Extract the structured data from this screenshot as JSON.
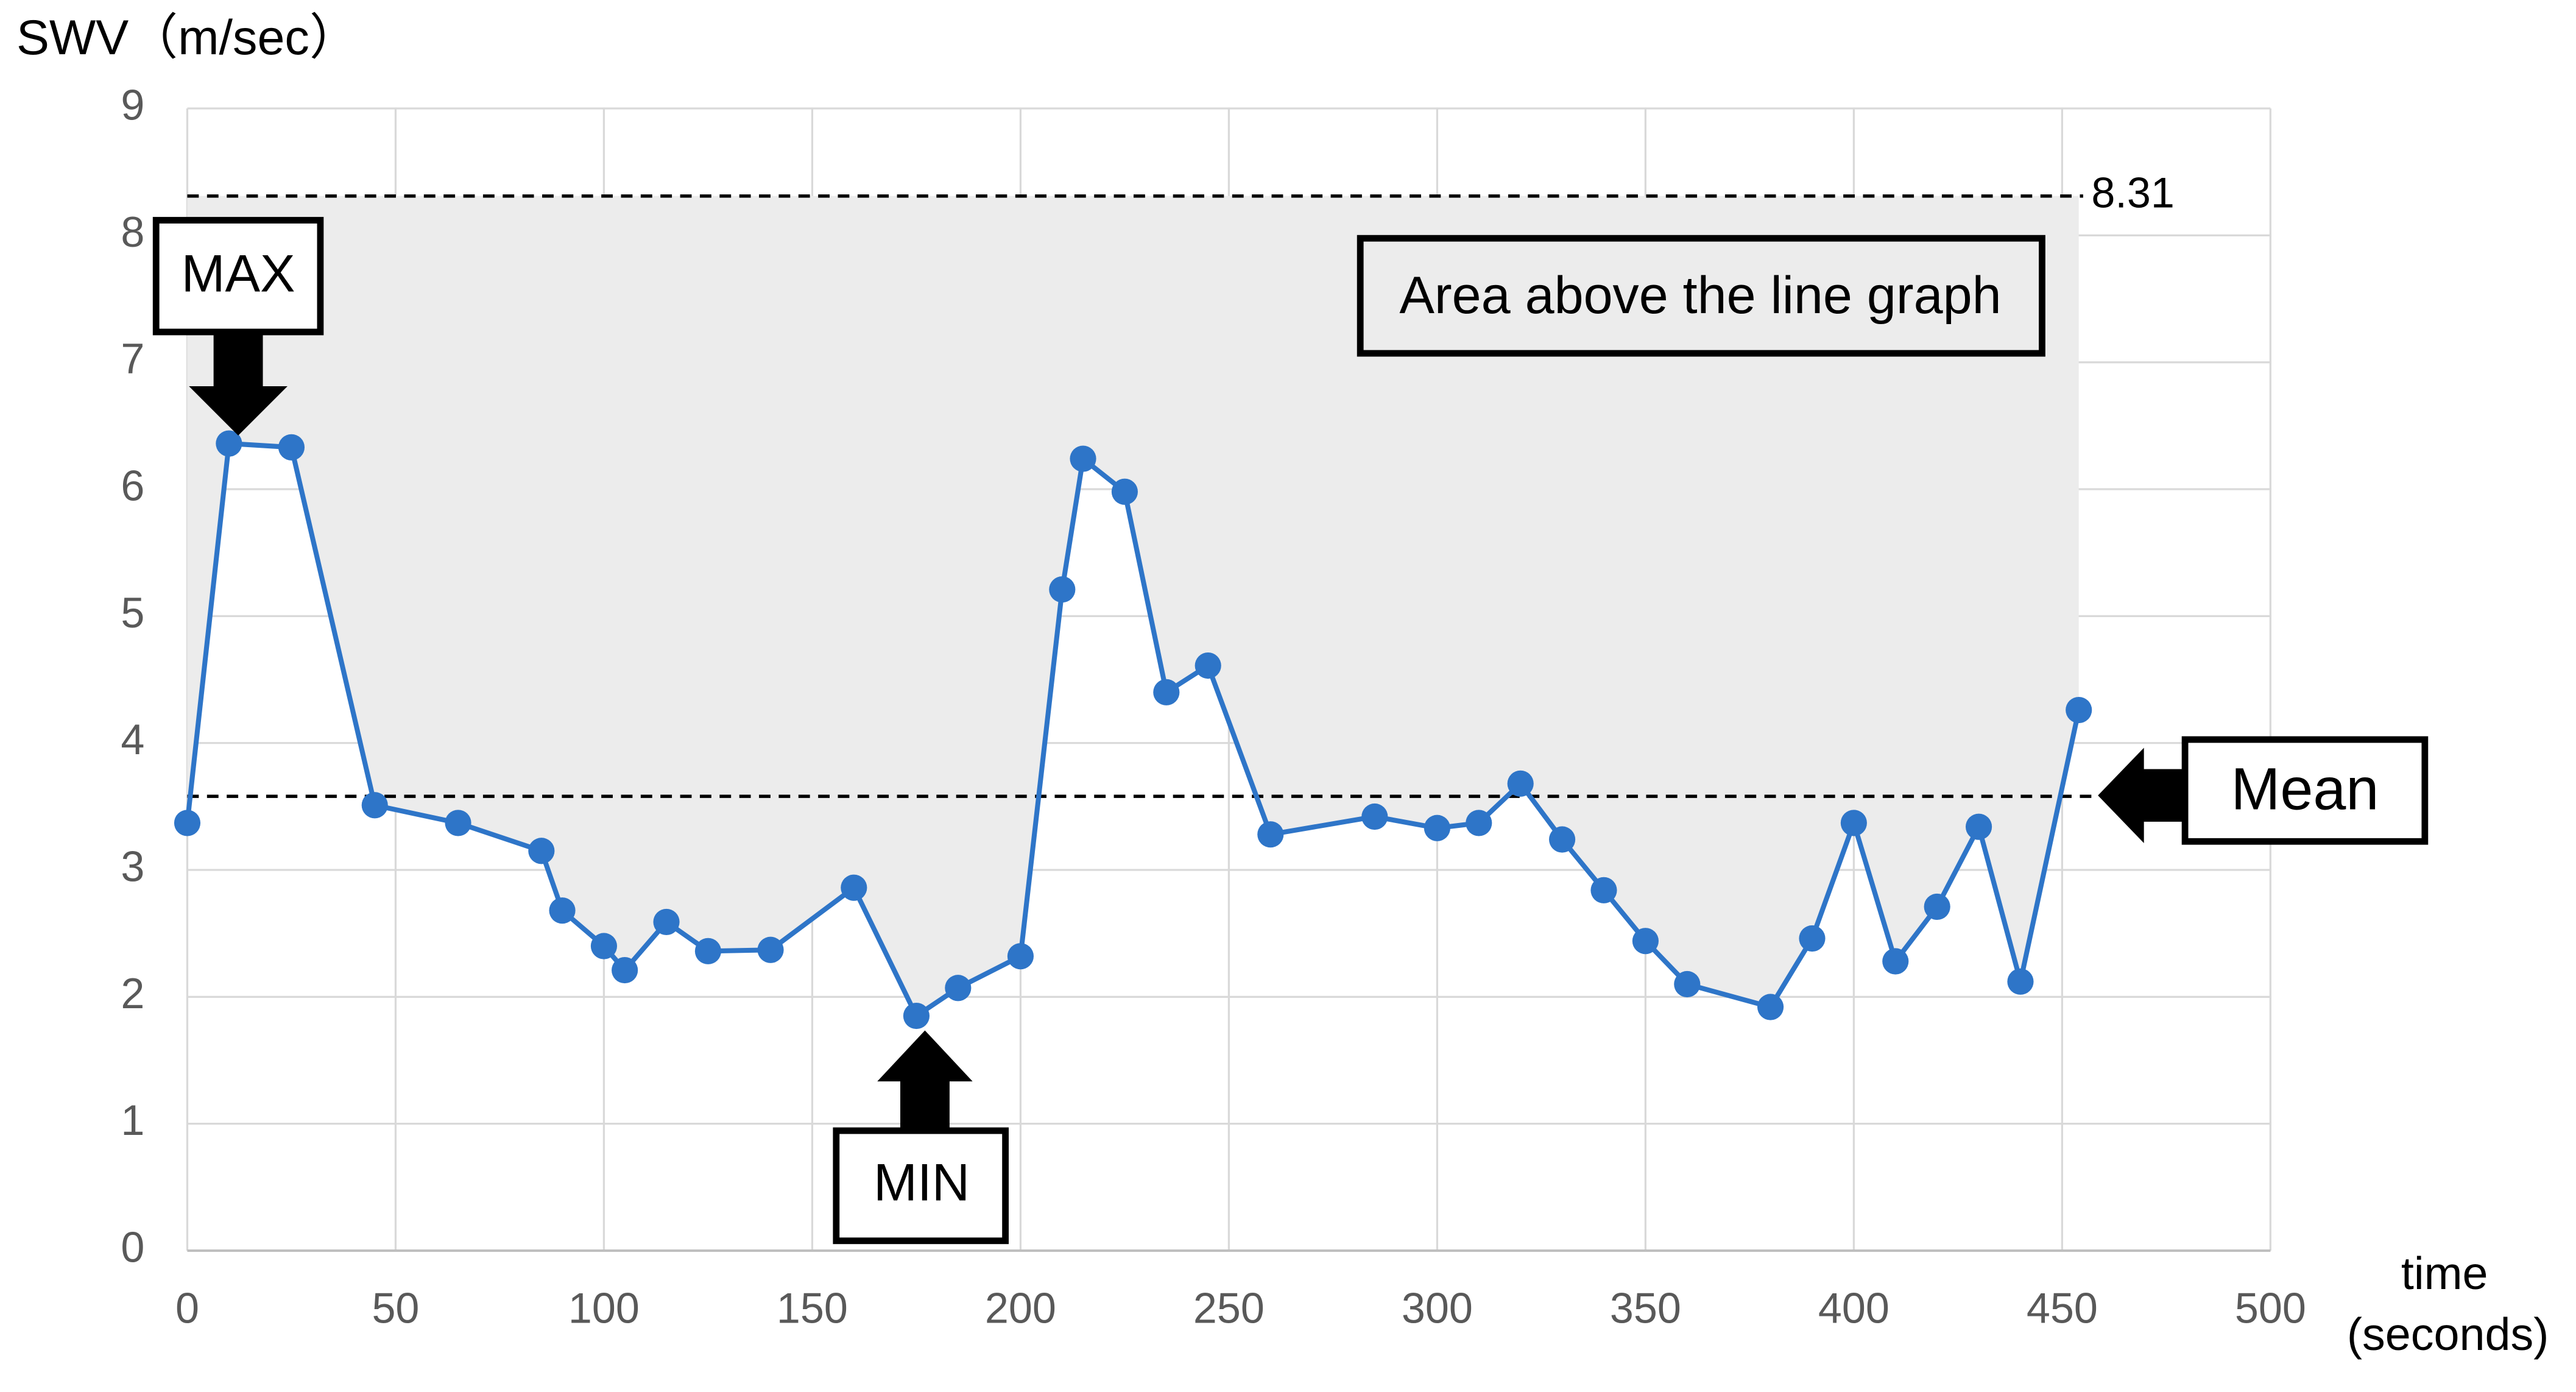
{
  "chart_data": {
    "type": "line",
    "y_label": "SWV（m/sec）",
    "x_label_lines": [
      "time",
      "(seconds)"
    ],
    "x": [
      0,
      10,
      25,
      45,
      65,
      85,
      90,
      100,
      105,
      115,
      125,
      140,
      160,
      175,
      185,
      200,
      210,
      215,
      225,
      235,
      245,
      260,
      285,
      300,
      310,
      320,
      330,
      340,
      350,
      360,
      380,
      390,
      400,
      410,
      420,
      430,
      440,
      454
    ],
    "values": [
      3.37,
      6.36,
      6.33,
      3.51,
      3.37,
      3.15,
      2.68,
      2.4,
      2.21,
      2.59,
      2.36,
      2.37,
      2.86,
      1.85,
      2.07,
      2.32,
      5.21,
      6.24,
      5.98,
      4.4,
      4.61,
      3.28,
      3.42,
      3.33,
      3.37,
      3.68,
      3.24,
      2.84,
      2.44,
      2.1,
      1.92,
      2.46,
      3.37,
      2.28,
      2.71,
      3.34,
      2.12,
      4.26
    ],
    "color": "#2e75c8",
    "xlim": [
      0,
      500
    ],
    "xticks": [
      0,
      50,
      100,
      150,
      200,
      250,
      300,
      350,
      400,
      450,
      500
    ],
    "ylim": [
      0,
      9
    ],
    "yticks": [
      0,
      1,
      2,
      3,
      4,
      5,
      6,
      7,
      8,
      9
    ],
    "grid": true,
    "max_line": 8.31,
    "mean_line": 3.58,
    "annotations": {
      "max": "MAX",
      "min": "MIN",
      "mean": "Mean",
      "area": "Area above the line graph"
    }
  }
}
